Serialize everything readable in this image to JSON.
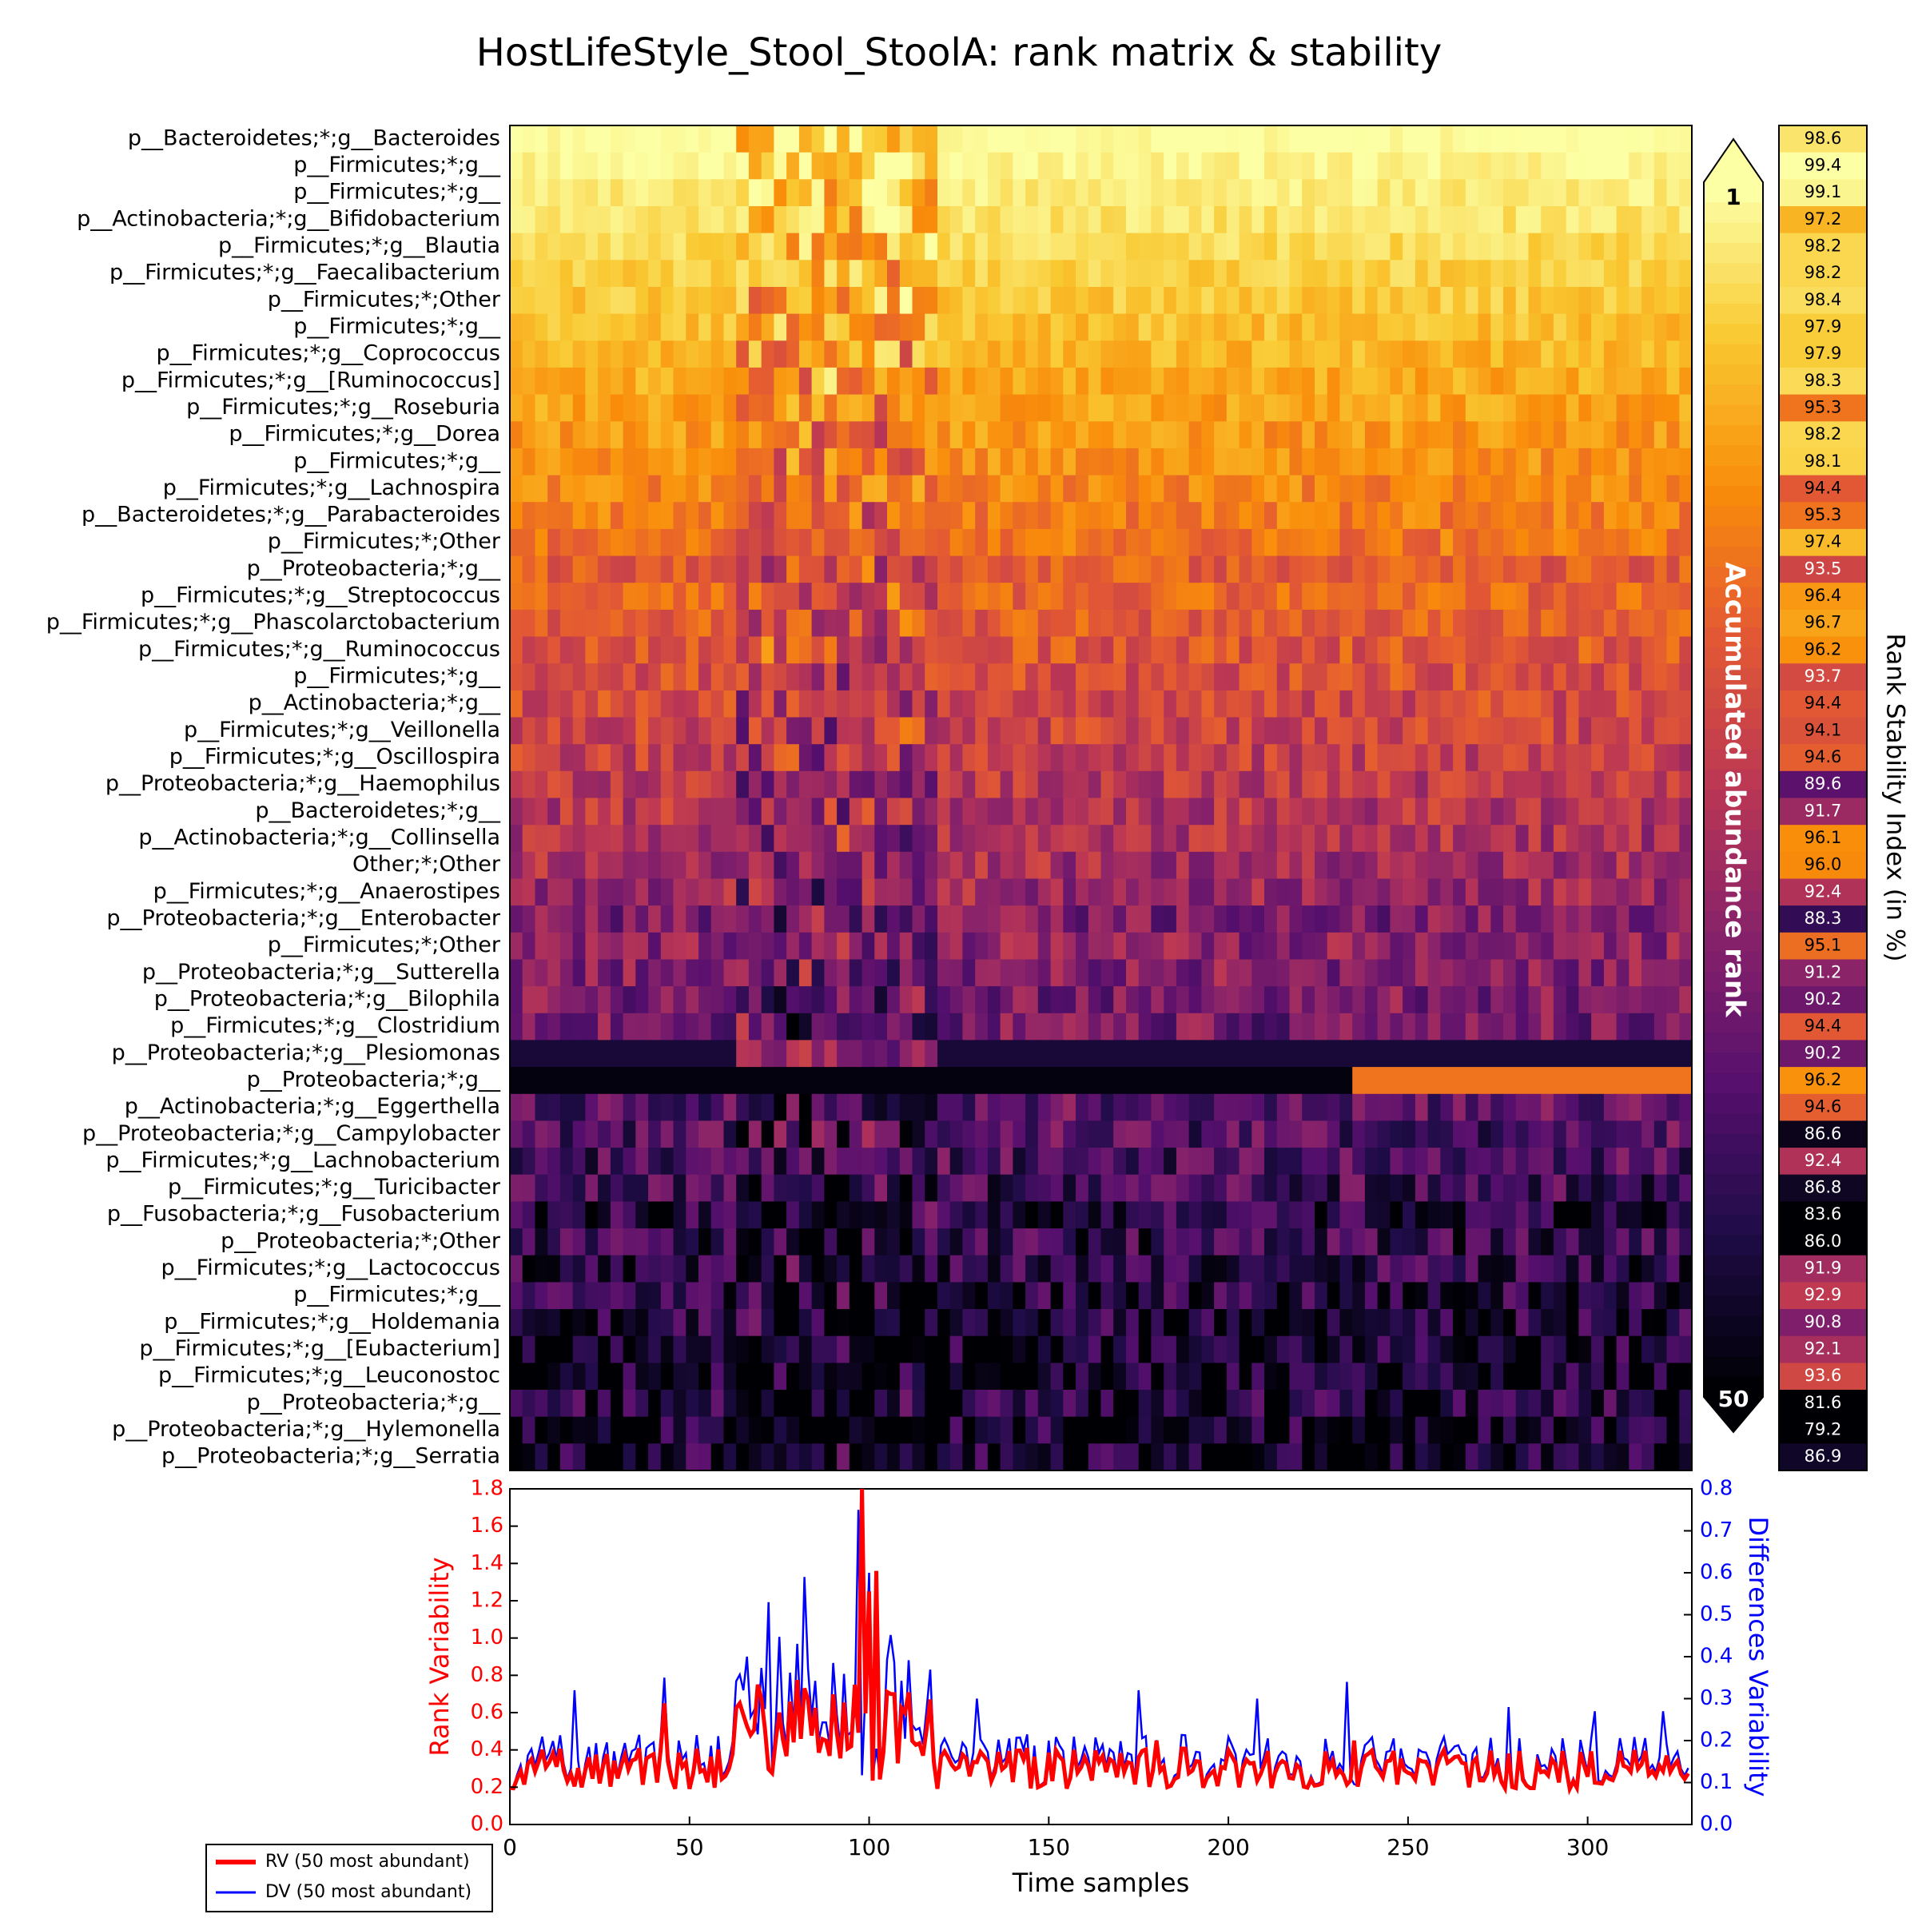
{
  "chart_data": [
    {
      "type": "heatmap",
      "title": "HostLifeStyle_Stool_StoolA: rank matrix & stability",
      "row_labels": [
        "p__Bacteroidetes;*;g__Bacteroides",
        "p__Firmicutes;*;g__",
        "p__Firmicutes;*;g__",
        "p__Actinobacteria;*;g__Bifidobacterium",
        "p__Firmicutes;*;g__Blautia",
        "p__Firmicutes;*;g__Faecalibacterium",
        "p__Firmicutes;*;Other",
        "p__Firmicutes;*;g__",
        "p__Firmicutes;*;g__Coprococcus",
        "p__Firmicutes;*;g__[Ruminococcus]",
        "p__Firmicutes;*;g__Roseburia",
        "p__Firmicutes;*;g__Dorea",
        "p__Firmicutes;*;g__",
        "p__Firmicutes;*;g__Lachnospira",
        "p__Bacteroidetes;*;g__Parabacteroides",
        "p__Firmicutes;*;Other",
        "p__Proteobacteria;*;g__",
        "p__Firmicutes;*;g__Streptococcus",
        "p__Firmicutes;*;g__Phascolarctobacterium",
        "p__Firmicutes;*;g__Ruminococcus",
        "p__Firmicutes;*;g__",
        "p__Actinobacteria;*;g__",
        "p__Firmicutes;*;g__Veillonella",
        "p__Firmicutes;*;g__Oscillospira",
        "p__Proteobacteria;*;g__Haemophilus",
        "p__Bacteroidetes;*;g__",
        "p__Actinobacteria;*;g__Collinsella",
        "Other;*;Other",
        "p__Firmicutes;*;g__Anaerostipes",
        "p__Proteobacteria;*;g__Enterobacter",
        "p__Firmicutes;*;Other",
        "p__Proteobacteria;*;g__Sutterella",
        "p__Proteobacteria;*;g__Bilophila",
        "p__Firmicutes;*;g__Clostridium",
        "p__Proteobacteria;*;g__Plesiomonas",
        "p__Proteobacteria;*;g__",
        "p__Actinobacteria;*;g__Eggerthella",
        "p__Proteobacteria;*;g__Campylobacter",
        "p__Firmicutes;*;g__Lachnobacterium",
        "p__Firmicutes;*;g__Turicibacter",
        "p__Fusobacteria;*;g__Fusobacterium",
        "p__Proteobacteria;*;Other",
        "p__Firmicutes;*;g__Lactococcus",
        "p__Firmicutes;*;g__",
        "p__Firmicutes;*;g__Holdemania",
        "p__Firmicutes;*;g__[Eubacterium]",
        "p__Firmicutes;*;g__Leuconostoc",
        "p__Proteobacteria;*;g__",
        "p__Proteobacteria;*;g__Hylemonella",
        "p__Proteobacteria;*;g__Serratia"
      ],
      "n_samples": 329,
      "typical_rank": [
        1,
        2,
        3,
        4,
        5,
        6,
        7,
        8,
        9,
        10,
        11,
        12,
        13,
        14,
        15,
        16,
        19,
        18,
        19,
        20,
        21,
        22,
        23,
        24,
        25,
        26,
        27,
        28,
        29,
        33,
        31,
        32,
        33,
        34,
        47,
        48,
        37,
        38,
        39,
        40,
        44,
        42,
        43,
        44,
        45,
        46,
        47,
        45,
        47,
        46
      ],
      "colorbar": {
        "label": "Accumulated abundance rank",
        "top_label": "1",
        "bottom_label": "50",
        "colormap": "inferno"
      },
      "stability_label": "Rank Stability Index (in %)",
      "stability": [
        98.6,
        99.4,
        99.1,
        97.2,
        98.2,
        98.2,
        98.4,
        97.9,
        97.9,
        98.3,
        95.3,
        98.2,
        98.1,
        94.4,
        95.3,
        97.4,
        93.5,
        96.4,
        96.7,
        96.2,
        93.7,
        94.4,
        94.1,
        94.6,
        89.6,
        91.7,
        96.1,
        96.0,
        92.4,
        88.3,
        95.1,
        91.2,
        90.2,
        94.4,
        90.2,
        96.2,
        94.6,
        86.6,
        92.4,
        86.8,
        83.6,
        86.0,
        91.9,
        92.9,
        90.8,
        92.1,
        93.6,
        81.6,
        79.2,
        86.9
      ]
    },
    {
      "type": "line",
      "xlabel": "Time samples",
      "ylabel_left": "Rank Variability",
      "ylabel_right": "Differences Variability",
      "xlim": [
        0,
        329
      ],
      "ylim_left": [
        0.0,
        1.8
      ],
      "ylim_right": [
        0.0,
        0.8
      ],
      "xticks": [
        "0",
        "50",
        "100",
        "150",
        "200",
        "250",
        "300"
      ],
      "yticks_left": [
        "0.0",
        "0.2",
        "0.4",
        "0.6",
        "0.8",
        "1.0",
        "1.2",
        "1.4",
        "1.6",
        "1.8"
      ],
      "yticks_right": [
        "0.0",
        "0.1",
        "0.2",
        "0.3",
        "0.4",
        "0.5",
        "0.6",
        "0.7",
        "0.8"
      ],
      "series": [
        {
          "name": "RV (50 most abundant)",
          "color": "#ff0000",
          "axis": "left",
          "peaks": [
            [
              43,
              0.65
            ],
            [
              69,
              0.75
            ],
            [
              75,
              0.6
            ],
            [
              83,
              0.67
            ],
            [
              88,
              0.45
            ],
            [
              96,
              0.75
            ],
            [
              98,
              1.8
            ],
            [
              100,
              1.25
            ],
            [
              102,
              1.36
            ],
            [
              106,
              0.7
            ],
            [
              110,
              0.6
            ],
            [
              180,
              0.45
            ],
            [
              235,
              0.45
            ]
          ]
        },
        {
          "name": "DV (50 most abundant)",
          "color": "#0000ff",
          "axis": "right",
          "peaks": [
            [
              18,
              0.32
            ],
            [
              43,
              0.35
            ],
            [
              66,
              0.4
            ],
            [
              72,
              0.53
            ],
            [
              82,
              0.59
            ],
            [
              97,
              0.75
            ],
            [
              100,
              0.6
            ],
            [
              130,
              0.3
            ],
            [
              175,
              0.32
            ],
            [
              208,
              0.3
            ],
            [
              233,
              0.34
            ],
            [
              278,
              0.28
            ],
            [
              302,
              0.27
            ],
            [
              321,
              0.27
            ]
          ]
        }
      ]
    }
  ]
}
